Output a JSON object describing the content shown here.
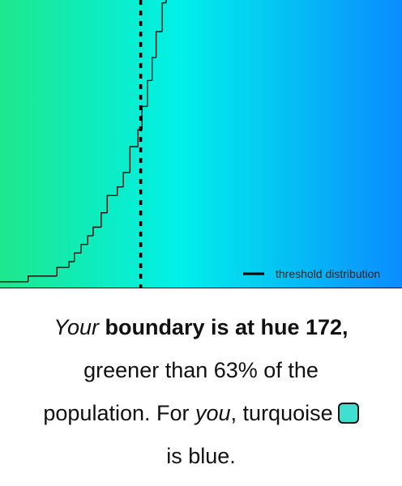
{
  "chart_data": {
    "type": "step",
    "x": [
      151.0,
      155.2,
      159.5,
      161.3,
      162.1,
      163.1,
      164.1,
      164.9,
      166.1,
      167.0,
      168.5,
      169.4,
      170.4,
      171.6,
      172.2,
      173.0,
      173.7,
      174.3,
      175.2,
      175.8
    ],
    "series": [
      {
        "name": "threshold distribution",
        "color": "#000000",
        "values": [
          0.02,
          0.04,
          0.07,
          0.09,
          0.12,
          0.15,
          0.18,
          0.21,
          0.26,
          0.32,
          0.35,
          0.4,
          0.49,
          0.55,
          0.63,
          0.72,
          0.8,
          0.89,
          0.99,
          1.0
        ]
      }
    ],
    "xlim": [
      151,
      211
    ],
    "ylim": [
      0,
      1
    ],
    "threshold": 172,
    "legend": "lower-right"
  },
  "message": {
    "lines": [
      [
        {
          "text": "Your",
          "style": "italic"
        },
        {
          "text": " boundary is at hue 172,",
          "style": "bold"
        }
      ],
      [
        {
          "text": "greener than 63% of the",
          "style": "normal"
        }
      ],
      [
        {
          "text": "population. For ",
          "style": "normal"
        },
        {
          "text": "you",
          "style": "italic"
        },
        {
          "text": ", turquoise",
          "style": "normal"
        }
      ],
      [
        {
          "text": "is blue.",
          "style": "normal"
        }
      ]
    ],
    "swatch_color": "#40e0d0",
    "swatch_line": 2
  }
}
